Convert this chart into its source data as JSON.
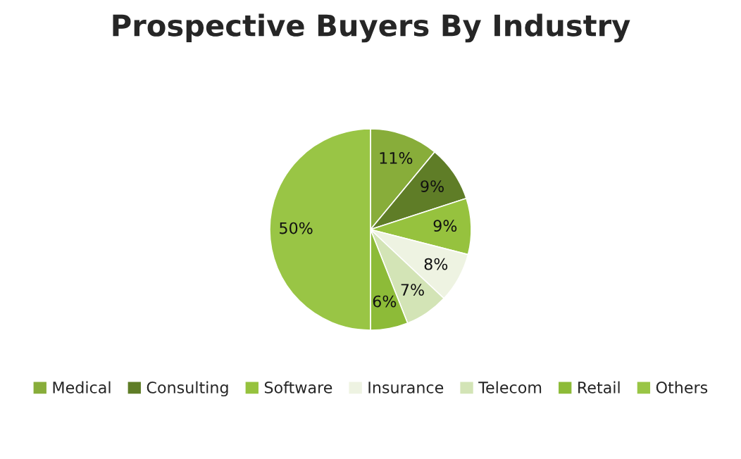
{
  "chart_data": {
    "type": "pie",
    "title": "Prospective Buyers By Industry",
    "categories": [
      "Medical",
      "Consulting",
      "Software",
      "Insurance",
      "Telecom",
      "Retail",
      "Others"
    ],
    "values": [
      11,
      9,
      9,
      8,
      7,
      6,
      50
    ],
    "colors": [
      "#88ad3a",
      "#5f7d27",
      "#96c23e",
      "#eef3e2",
      "#d3e4b6",
      "#8dbb38",
      "#99c545"
    ],
    "value_labels": [
      "11%",
      "9%",
      "9%",
      "8%",
      "7%",
      "6%",
      "50%"
    ],
    "legend": "bottom"
  }
}
